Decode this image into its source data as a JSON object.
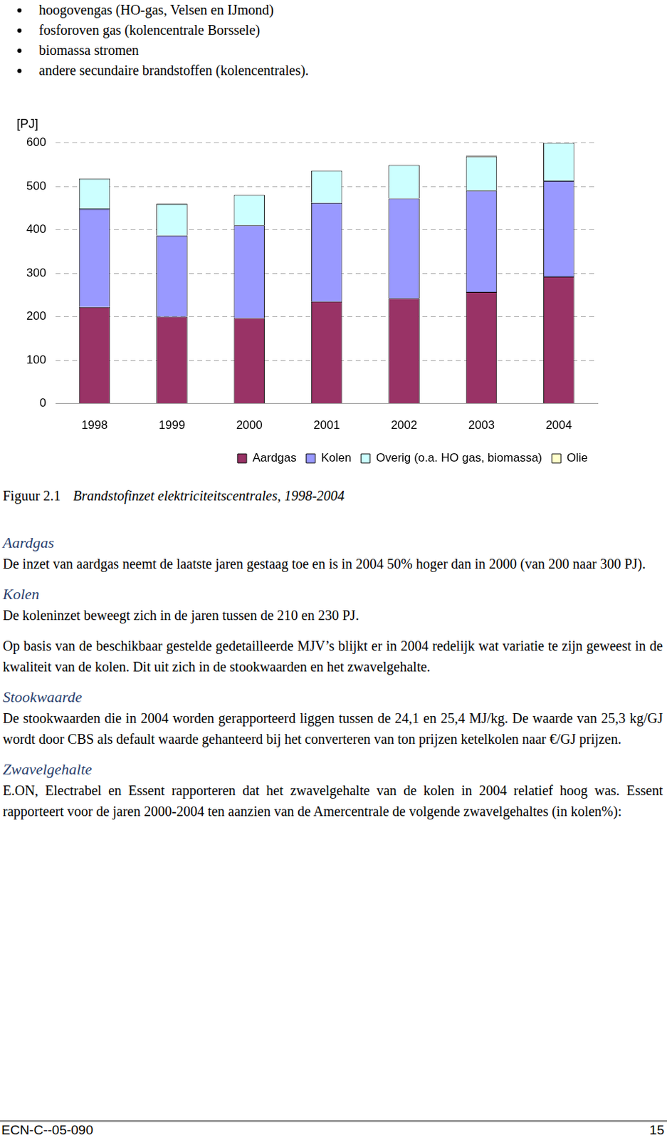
{
  "bullets": [
    "hoogovengas (HO-gas, Velsen en IJmond)",
    "fosforoven gas (kolencentrale Borssele)",
    "biomassa stromen",
    "andere secundaire brandstoffen (kolencentrales)."
  ],
  "chart_data": {
    "type": "bar",
    "y_label": "[PJ]",
    "categories": [
      "1998",
      "1999",
      "2000",
      "2001",
      "2002",
      "2003",
      "2004"
    ],
    "series": [
      {
        "name": "Aardgas",
        "color": "#993366",
        "values": [
          222,
          200,
          197,
          235,
          242,
          257,
          292
        ]
      },
      {
        "name": "Kolen",
        "color": "#9999ff",
        "values": [
          227,
          187,
          213,
          227,
          230,
          233,
          221
        ]
      },
      {
        "name": "Overig (o.a. HO gas, biomassa)",
        "color": "#ccffff",
        "values": [
          69,
          73,
          70,
          74,
          77,
          78,
          87
        ]
      },
      {
        "name": "Olie",
        "color": "#ffffcc",
        "values": [
          0,
          0,
          0,
          0,
          0,
          2,
          0
        ]
      }
    ],
    "stacked": true,
    "ylim": [
      0,
      600
    ],
    "yticks": [
      0,
      100,
      200,
      300,
      400,
      500,
      600
    ],
    "grid": true,
    "legend": "bottom"
  },
  "caption": {
    "label": "Figuur 2.1",
    "text": "Brandstofinzet elektriciteitscentrales, 1998-2004"
  },
  "sections": [
    {
      "heading": "Aardgas",
      "paragraphs": [
        "De inzet van aardgas neemt de laatste jaren gestaag toe en is in 2004 50% hoger dan in 2000 (van 200 naar 300 PJ)."
      ]
    },
    {
      "heading": "Kolen",
      "paragraphs": [
        "De koleninzet beweegt zich in de jaren tussen de 210 en 230 PJ.",
        "Op basis van de beschikbaar gestelde gedetailleerde MJV’s blijkt er in 2004 redelijk wat variatie te zijn geweest in de kwaliteit van de kolen. Dit uit zich in de stookwaarden en het zwavelgehalte."
      ]
    },
    {
      "heading": "Stookwaarde",
      "paragraphs": [
        "De stookwaarden die in 2004 worden gerapporteerd liggen tussen de 24,1 en 25,4 MJ/kg. De waarde van 25,3 kg/GJ wordt door CBS als default waarde gehanteerd bij het converteren van ton prijzen ketelkolen naar €/GJ prijzen."
      ]
    },
    {
      "heading": "Zwavelgehalte",
      "paragraphs": [
        "E.ON, Electrabel en Essent rapporteren dat het zwavelgehalte van de kolen in 2004 relatief hoog was. Essent rapporteert voor de jaren 2000-2004 ten aanzien van de Amercentrale de volgende zwavelgehaltes (in kolen%):"
      ]
    }
  ],
  "footer": {
    "left": "ECN-C--05-090",
    "right": "15"
  }
}
